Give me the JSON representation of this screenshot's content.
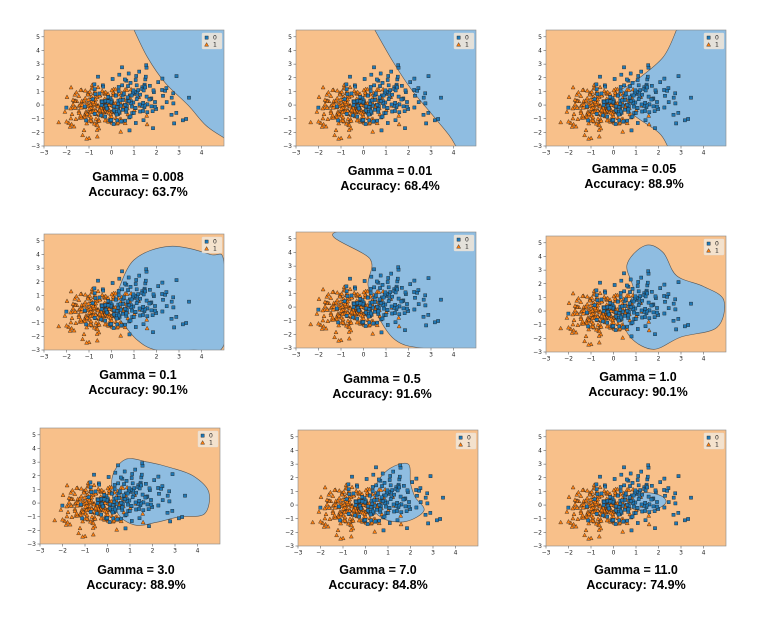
{
  "colors": {
    "class0_region": "#8fbde1",
    "class1_region": "#f8c08a",
    "class0_marker": "#1f77b4",
    "class1_marker": "#ff7f0e",
    "boundary": "#555555"
  },
  "legend": [
    "0",
    "1"
  ],
  "chart_data": [
    {
      "type": "scatter",
      "gamma_label": "Gamma = 0.008",
      "accuracy_label": "Accuracy: 63.7%",
      "gamma": 0.008,
      "accuracy": 63.7,
      "xlim": [
        -3,
        5
      ],
      "ylim": [
        -3,
        5.5
      ],
      "xticks": [
        -3,
        -2,
        -1,
        0,
        1,
        2,
        3,
        4
      ],
      "yticks": [
        -3,
        -2,
        -1,
        0,
        1,
        2,
        3,
        4,
        5
      ],
      "legend_position": "top-right"
    },
    {
      "type": "scatter",
      "gamma_label": "Gamma = 0.01",
      "accuracy_label": "Accuracy: 68.4%",
      "gamma": 0.01,
      "accuracy": 68.4,
      "xlim": [
        -3,
        5
      ],
      "ylim": [
        -3,
        5.5
      ],
      "xticks": [
        -3,
        -2,
        -1,
        0,
        1,
        2,
        3,
        4
      ],
      "yticks": [
        -3,
        -2,
        -1,
        0,
        1,
        2,
        3,
        4,
        5
      ],
      "legend_position": "top-right"
    },
    {
      "type": "scatter",
      "gamma_label": "Gamma = 0.05",
      "accuracy_label": "Accuracy: 88.9%",
      "gamma": 0.05,
      "accuracy": 88.9,
      "xlim": [
        -3,
        5
      ],
      "ylim": [
        -3,
        5.5
      ],
      "xticks": [
        -3,
        -2,
        -1,
        0,
        1,
        2,
        3,
        4
      ],
      "yticks": [
        -3,
        -2,
        -1,
        0,
        1,
        2,
        3,
        4,
        5
      ],
      "legend_position": "top-right"
    },
    {
      "type": "scatter",
      "gamma_label": "Gamma = 0.1",
      "accuracy_label": "Accuracy: 90.1%",
      "gamma": 0.1,
      "accuracy": 90.1,
      "xlim": [
        -3,
        5
      ],
      "ylim": [
        -3,
        5.5
      ],
      "xticks": [
        -3,
        -2,
        -1,
        0,
        1,
        2,
        3,
        4
      ],
      "yticks": [
        -3,
        -2,
        -1,
        0,
        1,
        2,
        3,
        4,
        5
      ],
      "legend_position": "top-right"
    },
    {
      "type": "scatter",
      "gamma_label": "Gamma = 0.5",
      "accuracy_label": "Accuracy: 91.6%",
      "gamma": 0.5,
      "accuracy": 91.6,
      "xlim": [
        -3,
        5
      ],
      "ylim": [
        -3,
        5.5
      ],
      "xticks": [
        -3,
        -2,
        -1,
        0,
        1,
        2,
        3,
        4
      ],
      "yticks": [
        -3,
        -2,
        -1,
        0,
        1,
        2,
        3,
        4,
        5
      ],
      "legend_position": "top-right"
    },
    {
      "type": "scatter",
      "gamma_label": "Gamma = 1.0",
      "accuracy_label": "Accuracy: 90.1%",
      "gamma": 1.0,
      "accuracy": 90.1,
      "xlim": [
        -3,
        5
      ],
      "ylim": [
        -3,
        5.5
      ],
      "xticks": [
        -3,
        -2,
        -1,
        0,
        1,
        2,
        3,
        4
      ],
      "yticks": [
        -3,
        -2,
        -1,
        0,
        1,
        2,
        3,
        4,
        5
      ],
      "legend_position": "top-right"
    },
    {
      "type": "scatter",
      "gamma_label": "Gamma = 3.0",
      "accuracy_label": "Accuracy: 88.9%",
      "gamma": 3.0,
      "accuracy": 88.9,
      "xlim": [
        -3,
        5
      ],
      "ylim": [
        -3,
        5.5
      ],
      "xticks": [
        -3,
        -2,
        -1,
        0,
        1,
        2,
        3,
        4
      ],
      "yticks": [
        -3,
        -2,
        -1,
        0,
        1,
        2,
        3,
        4,
        5
      ],
      "legend_position": "top-right"
    },
    {
      "type": "scatter",
      "gamma_label": "Gamma = 7.0",
      "accuracy_label": "Accuracy: 84.8%",
      "gamma": 7.0,
      "accuracy": 84.8,
      "xlim": [
        -3,
        5
      ],
      "ylim": [
        -3,
        5.5
      ],
      "xticks": [
        -3,
        -2,
        -1,
        0,
        1,
        2,
        3,
        4
      ],
      "yticks": [
        -3,
        -2,
        -1,
        0,
        1,
        2,
        3,
        4,
        5
      ],
      "legend_position": "top-right"
    },
    {
      "type": "scatter",
      "gamma_label": "Gamma = 11.0",
      "accuracy_label": "Accuracy: 74.9%",
      "gamma": 11.0,
      "accuracy": 74.9,
      "xlim": [
        -3,
        5
      ],
      "ylim": [
        -3,
        5.5
      ],
      "xticks": [
        -3,
        -2,
        -1,
        0,
        1,
        2,
        3,
        4
      ],
      "yticks": [
        -3,
        -2,
        -1,
        0,
        1,
        2,
        3,
        4,
        5
      ],
      "legend_position": "top-right"
    }
  ]
}
